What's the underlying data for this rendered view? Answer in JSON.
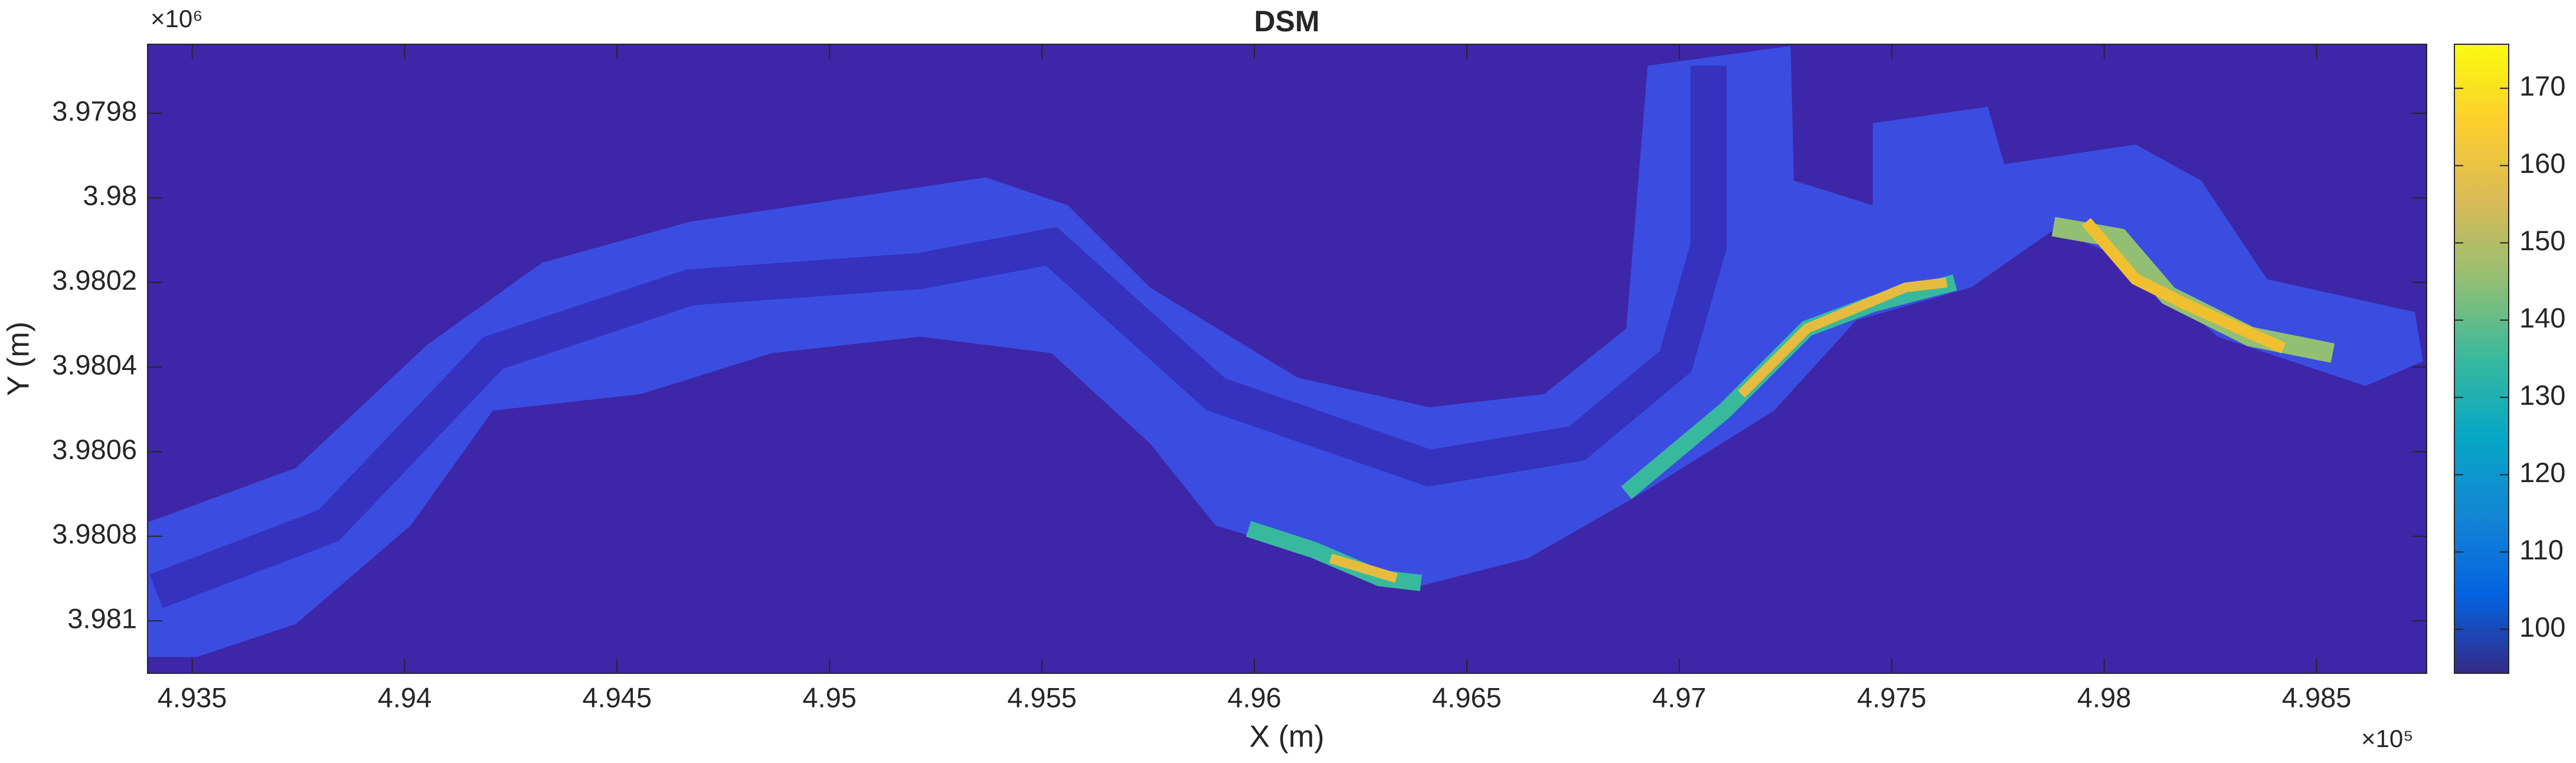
{
  "chart_data": {
    "type": "heatmap",
    "title": "DSM",
    "x_label": "X (m)",
    "y_label": "Y (m)",
    "x_multiplier": "×10⁵",
    "y_multiplier": "×10⁶",
    "xlim": [
      4.93395,
      4.98759
    ],
    "xticks": [
      4.935,
      4.94,
      4.945,
      4.95,
      4.955,
      4.96,
      4.965,
      4.97,
      4.975,
      4.98,
      4.985
    ],
    "ylim": [
      3.979637,
      3.981124
    ],
    "y_reversed": true,
    "yticks": [
      3.9798,
      3.98,
      3.9802,
      3.9804,
      3.9806,
      3.9808,
      3.981
    ],
    "clim": [
      94.3,
      175.7
    ],
    "cticks": [
      100,
      110,
      120,
      130,
      140,
      150,
      160,
      170
    ],
    "colormap": [
      "#352a87",
      "#0363e1",
      "#1485d4",
      "#06a7c6",
      "#38b99e",
      "#92bf73",
      "#d9ba56",
      "#fcce2e",
      "#f9fb0e"
    ],
    "grid": false
  }
}
